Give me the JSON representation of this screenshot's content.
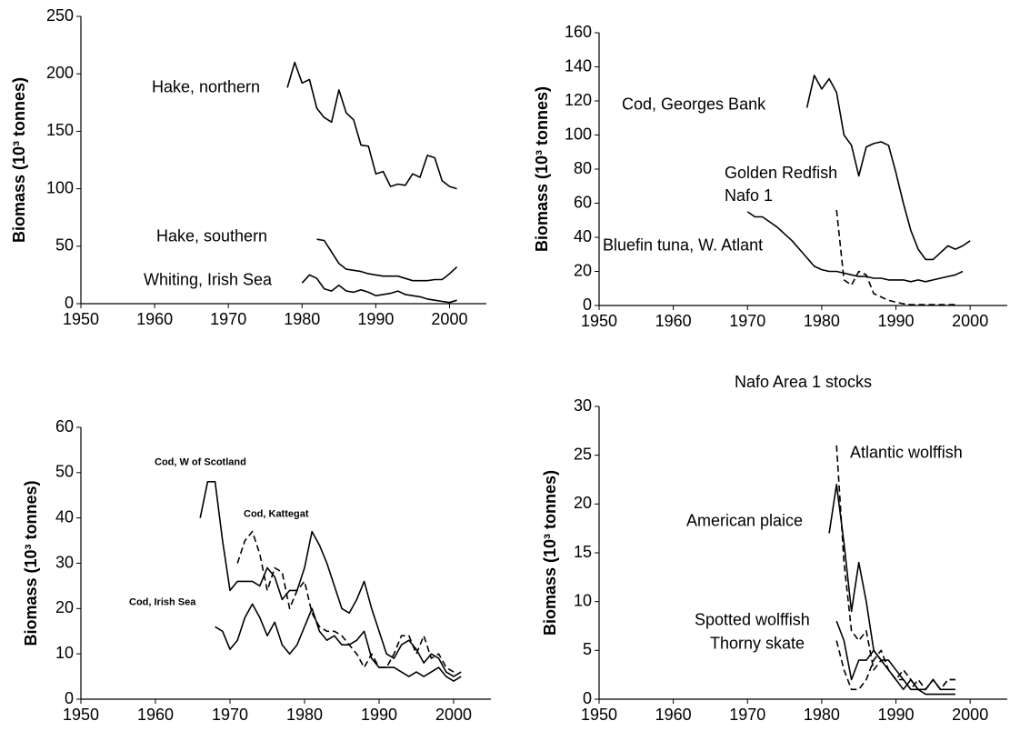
{
  "chart_data": [
    {
      "type": "line",
      "ylabel": "Biomass (10³ tonnes)",
      "xlim": [
        1950,
        2005
      ],
      "xticks": [
        1950,
        1960,
        1970,
        1980,
        1990,
        2000
      ],
      "ylim": [
        0,
        250
      ],
      "yticks": [
        0,
        50,
        100,
        150,
        200,
        250
      ],
      "series": [
        {
          "name": "Hake, northern",
          "color": "#000000",
          "dashed": false,
          "x": [
            1978,
            1979,
            1980,
            1981,
            1982,
            1983,
            1984,
            1985,
            1986,
            1987,
            1988,
            1989,
            1990,
            1991,
            1992,
            1993,
            1994,
            1995,
            1996,
            1997,
            1998,
            1999,
            2000,
            2001
          ],
          "values": [
            188,
            210,
            192,
            195,
            170,
            162,
            158,
            186,
            166,
            160,
            138,
            137,
            113,
            115,
            102,
            104,
            103,
            113,
            110,
            129,
            127,
            107,
            102,
            100
          ]
        },
        {
          "name": "Hake, southern",
          "color": "#000000",
          "dashed": false,
          "x": [
            1982,
            1983,
            1984,
            1985,
            1986,
            1987,
            1988,
            1989,
            1990,
            1991,
            1992,
            1993,
            1994,
            1995,
            1996,
            1997,
            1998,
            1999,
            2000,
            2001
          ],
          "values": [
            56,
            55,
            45,
            35,
            30,
            29,
            28,
            26,
            25,
            24,
            24,
            24,
            22,
            20,
            20,
            20,
            21,
            21,
            26,
            32
          ]
        },
        {
          "name": "Whiting, Irish Sea",
          "color": "#000000",
          "dashed": false,
          "x": [
            1980,
            1981,
            1982,
            1983,
            1984,
            1985,
            1986,
            1987,
            1988,
            1989,
            1990,
            1991,
            1992,
            1993,
            1994,
            1995,
            1996,
            1997,
            1998,
            1999,
            2000,
            2001
          ],
          "values": [
            18,
            25,
            22,
            13,
            11,
            16,
            11,
            10,
            12,
            10,
            7,
            8,
            9,
            11,
            8,
            7,
            6,
            4,
            3,
            2,
            1,
            3
          ]
        }
      ]
    },
    {
      "type": "line",
      "ylabel": "Biomass (10³ tonnes)",
      "xlim": [
        1950,
        2005
      ],
      "xticks": [
        1950,
        1960,
        1970,
        1980,
        1990,
        2000
      ],
      "ylim": [
        0,
        160
      ],
      "yticks": [
        0,
        20,
        40,
        60,
        80,
        100,
        120,
        140,
        160
      ],
      "series": [
        {
          "name": "Cod, Georges Bank",
          "color": "#000000",
          "dashed": false,
          "x": [
            1978,
            1979,
            1980,
            1981,
            1982,
            1983,
            1984,
            1985,
            1986,
            1987,
            1988,
            1989,
            1990,
            1991,
            1992,
            1993,
            1994,
            1995,
            1996,
            1997,
            1998,
            1999,
            2000
          ],
          "values": [
            116,
            135,
            127,
            133,
            125,
            100,
            94,
            76,
            93,
            95,
            96,
            94,
            78,
            60,
            44,
            33,
            27,
            27,
            31,
            35,
            33,
            35,
            38
          ]
        },
        {
          "name": "Golden Redfish Nafo 1",
          "color": "#000000",
          "dashed": true,
          "x": [
            1982,
            1983,
            1984,
            1985,
            1986,
            1987,
            1988,
            1989,
            1990,
            1991,
            1992,
            1993,
            1994,
            1995,
            1996,
            1997,
            1998
          ],
          "values": [
            56,
            15,
            12,
            20,
            18,
            7,
            5,
            3,
            2,
            1,
            0.5,
            0.5,
            0.5,
            0.5,
            0.5,
            0.5,
            0.5
          ]
        },
        {
          "name": "Bluefin tuna, W. Atlant",
          "color": "#000000",
          "dashed": false,
          "x": [
            1970,
            1971,
            1972,
            1973,
            1974,
            1975,
            1976,
            1977,
            1978,
            1979,
            1980,
            1981,
            1982,
            1983,
            1984,
            1985,
            1986,
            1987,
            1988,
            1989,
            1990,
            1991,
            1992,
            1993,
            1994,
            1995,
            1996,
            1997,
            1998,
            1999
          ],
          "values": [
            55,
            52,
            52,
            49,
            46,
            42,
            38,
            33,
            28,
            23,
            21,
            20,
            20,
            19,
            18,
            17,
            17,
            16,
            16,
            15,
            15,
            15,
            14,
            15,
            14,
            15,
            16,
            17,
            18,
            20
          ]
        }
      ]
    },
    {
      "type": "line",
      "ylabel": "Biomass (10³ tonnes)",
      "xlim": [
        1950,
        2005
      ],
      "xticks": [
        1950,
        1960,
        1970,
        1980,
        1990,
        2000
      ],
      "ylim": [
        0,
        60
      ],
      "yticks": [
        0,
        10,
        20,
        30,
        40,
        50,
        60
      ],
      "series": [
        {
          "name": "Cod, W of Scotland",
          "color": "#000000",
          "dashed": false,
          "x": [
            1966,
            1967,
            1968,
            1969,
            1970,
            1971,
            1972,
            1973,
            1974,
            1975,
            1976,
            1977,
            1978,
            1979,
            1980,
            1981,
            1982,
            1983,
            1984,
            1985,
            1986,
            1987,
            1988,
            1989,
            1990,
            1991,
            1992,
            1993,
            1994,
            1995,
            1996,
            1997,
            1998,
            1999,
            2000,
            2001
          ],
          "values": [
            40,
            48,
            48,
            35,
            24,
            26,
            26,
            26,
            25,
            29,
            27,
            22,
            24,
            24,
            29,
            37,
            34,
            30,
            25,
            20,
            19,
            22,
            26,
            20,
            15,
            10,
            9,
            12,
            13,
            11,
            8,
            10,
            9,
            6,
            5,
            6
          ]
        },
        {
          "name": "Cod, Kattegat",
          "color": "#000000",
          "dashed": true,
          "x": [
            1971,
            1972,
            1973,
            1974,
            1975,
            1976,
            1977,
            1978,
            1979,
            1980,
            1981,
            1982,
            1983,
            1984,
            1985,
            1986,
            1987,
            1988,
            1989,
            1990,
            1991,
            1992,
            1993,
            1994,
            1995,
            1996,
            1997,
            1998,
            1999,
            2000
          ],
          "values": [
            30,
            35,
            37,
            32,
            24,
            29,
            28,
            20,
            24,
            26,
            19,
            16,
            15,
            15,
            14,
            12,
            10,
            7,
            10,
            7,
            7,
            10,
            14,
            14,
            10,
            14,
            9,
            10,
            7,
            6
          ]
        },
        {
          "name": "Cod, Irish Sea",
          "color": "#000000",
          "dashed": false,
          "x": [
            1968,
            1969,
            1970,
            1971,
            1972,
            1973,
            1974,
            1975,
            1976,
            1977,
            1978,
            1979,
            1980,
            1981,
            1982,
            1983,
            1984,
            1985,
            1986,
            1987,
            1988,
            1989,
            1990,
            1991,
            1992,
            1993,
            1994,
            1995,
            1996,
            1997,
            1998,
            1999,
            2000,
            2001
          ],
          "values": [
            16,
            15,
            11,
            13,
            18,
            21,
            18,
            14,
            17,
            12,
            10,
            12,
            16,
            20,
            15,
            13,
            14,
            12,
            12,
            13,
            15,
            9,
            7,
            7,
            7,
            6,
            5,
            6,
            5,
            6,
            7,
            5,
            4,
            5
          ]
        }
      ]
    },
    {
      "type": "line",
      "title": "Nafo Area 1 stocks",
      "ylabel": "Biomass (10³ tonnes)",
      "xlim": [
        1950,
        2005
      ],
      "xticks": [
        1950,
        1960,
        1970,
        1980,
        1990,
        2000
      ],
      "ylim": [
        0,
        30
      ],
      "yticks": [
        0,
        5,
        10,
        15,
        20,
        25,
        30
      ],
      "series": [
        {
          "name": "Atlantic wolffish",
          "color": "#000000",
          "dashed": true,
          "x": [
            1982,
            1983,
            1984,
            1985,
            1986,
            1987,
            1988,
            1989,
            1990,
            1991,
            1992,
            1993,
            1994,
            1995,
            1996,
            1997,
            1998
          ],
          "values": [
            26,
            14,
            7,
            6,
            7,
            3,
            4,
            3,
            2,
            2,
            1,
            2,
            1,
            2,
            1,
            2,
            2
          ]
        },
        {
          "name": "American plaice",
          "color": "#000000",
          "dashed": false,
          "x": [
            1981,
            1982,
            1983,
            1984,
            1985,
            1986,
            1987,
            1988,
            1989,
            1990,
            1991,
            1992,
            1993,
            1994,
            1995,
            1996,
            1997,
            1998
          ],
          "values": [
            17,
            22,
            16,
            9,
            14,
            10,
            5,
            4,
            4,
            3,
            2,
            1,
            1,
            0.5,
            0.5,
            0.5,
            0.5,
            0.5
          ]
        },
        {
          "name": "Spotted wolffish",
          "color": "#000000",
          "dashed": false,
          "x": [
            1982,
            1983,
            1984,
            1985,
            1986,
            1987,
            1988,
            1989,
            1990,
            1991,
            1992,
            1993,
            1994,
            1995,
            1996,
            1997,
            1998
          ],
          "values": [
            8,
            6,
            2,
            4,
            4,
            5,
            4,
            3,
            2,
            1,
            2,
            1,
            1,
            2,
            1,
            1,
            1
          ]
        },
        {
          "name": "Thorny skate",
          "color": "#000000",
          "dashed": true,
          "x": [
            1982,
            1983,
            1984,
            1985,
            1986,
            1987,
            1988,
            1989,
            1990,
            1991,
            1992,
            1993,
            1994,
            1995,
            1996,
            1997,
            1998
          ],
          "values": [
            6,
            3,
            1,
            1,
            2,
            4,
            5,
            3,
            2,
            3,
            2,
            1,
            1,
            2,
            1,
            2,
            2
          ]
        }
      ]
    }
  ]
}
